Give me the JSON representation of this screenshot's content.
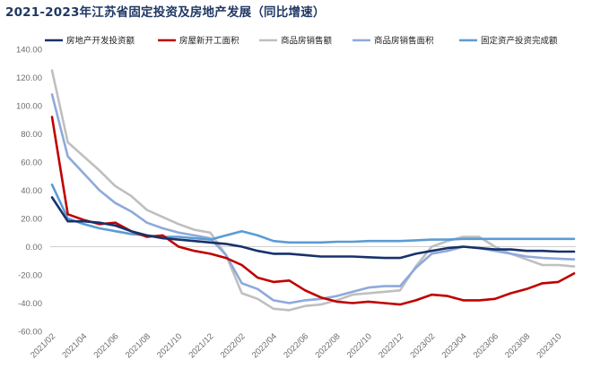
{
  "title": "2021-2023年江苏省固定投资及房地产发展（同比增速）",
  "chart_data": {
    "type": "line",
    "title": "2021-2023年江苏省固定投资及房地产发展（同比增速）",
    "xlabel": "",
    "ylabel": "",
    "ylim": [
      -60,
      140
    ],
    "yticks": [
      "140.00",
      "120.00",
      "100.00",
      "80.00",
      "60.00",
      "40.00",
      "20.00",
      "0.00",
      "-20.00",
      "-40.00",
      "-60.00"
    ],
    "grid": false,
    "legend_position": "top",
    "x": [
      "2021/02",
      "2021/03",
      "2021/04",
      "2021/05",
      "2021/06",
      "2021/07",
      "2021/08",
      "2021/09",
      "2021/10",
      "2021/11",
      "2021/12",
      "2022/01",
      "2022/02",
      "2022/03",
      "2022/04",
      "2022/05",
      "2022/06",
      "2022/07",
      "2022/08",
      "2022/09",
      "2022/10",
      "2022/11",
      "2022/12",
      "2023/01",
      "2023/02",
      "2023/03",
      "2023/04",
      "2023/05",
      "2023/06",
      "2023/07",
      "2023/08",
      "2023/09",
      "2023/10",
      "2023/11"
    ],
    "xtick_labels": [
      "2021/02",
      "2021/04",
      "2021/06",
      "2021/08",
      "2021/10",
      "2021/12",
      "2022/02",
      "2022/04",
      "2022/06",
      "2022/08",
      "2022/10",
      "2022/12",
      "2023/02",
      "2023/04",
      "2023/06",
      "2023/08",
      "2023/10"
    ],
    "series": [
      {
        "name": "房地产开发投资额",
        "color": "#17326a",
        "values": [
          35,
          18,
          18,
          17,
          15,
          11,
          8,
          6,
          5,
          4,
          3,
          2,
          0,
          -3,
          -5,
          -5,
          -6,
          -7,
          -7,
          -7,
          -7.5,
          -8,
          -8,
          -5,
          -3,
          -1,
          0,
          -1,
          -2,
          -2,
          -3,
          -3,
          -3.5,
          -3.5
        ]
      },
      {
        "name": "房屋新开工面积",
        "color": "#c00000",
        "values": [
          92,
          23,
          19,
          16,
          17,
          11,
          7,
          8,
          0,
          -3,
          -5,
          -8,
          -13,
          -22,
          -25,
          -24,
          -31,
          -36,
          -39,
          -40,
          -39,
          -40,
          -41,
          -38,
          -34,
          -35,
          -38,
          -38,
          -37,
          -33,
          -30,
          -26,
          -25,
          -19
        ]
      },
      {
        "name": "商品房销售额",
        "color": "#bfbfbf",
        "values": [
          125,
          74,
          64,
          54,
          43,
          36,
          26,
          21,
          16,
          12,
          10,
          -6,
          -33,
          -37,
          -44,
          -45,
          -42,
          -41,
          -38,
          -34,
          -33,
          -32,
          -31,
          -14,
          0,
          4,
          7,
          7,
          0,
          -5,
          -9,
          -13,
          -13,
          -14
        ]
      },
      {
        "name": "商品房销售面积",
        "color": "#8ea9db",
        "values": [
          108,
          64,
          52,
          40,
          31,
          25,
          17,
          13,
          10,
          8,
          6,
          -6,
          -26,
          -30,
          -38,
          -40,
          -38,
          -37,
          -35,
          -32,
          -29,
          -28,
          -28,
          -15,
          -5,
          -3,
          0,
          -1,
          -3,
          -5,
          -7,
          -8,
          -8.5,
          -9
        ]
      },
      {
        "name": "固定资产投资完成额",
        "color": "#5b9bd5",
        "values": [
          44,
          20,
          16,
          13,
          11,
          9,
          8,
          7,
          7,
          6,
          5,
          8,
          11,
          8,
          4,
          3,
          3,
          3,
          3.5,
          3.5,
          4,
          4,
          4,
          4.5,
          5,
          5,
          5.5,
          5.5,
          5.5,
          5.5,
          5.5,
          5.5,
          5.5,
          5.5
        ]
      }
    ]
  }
}
